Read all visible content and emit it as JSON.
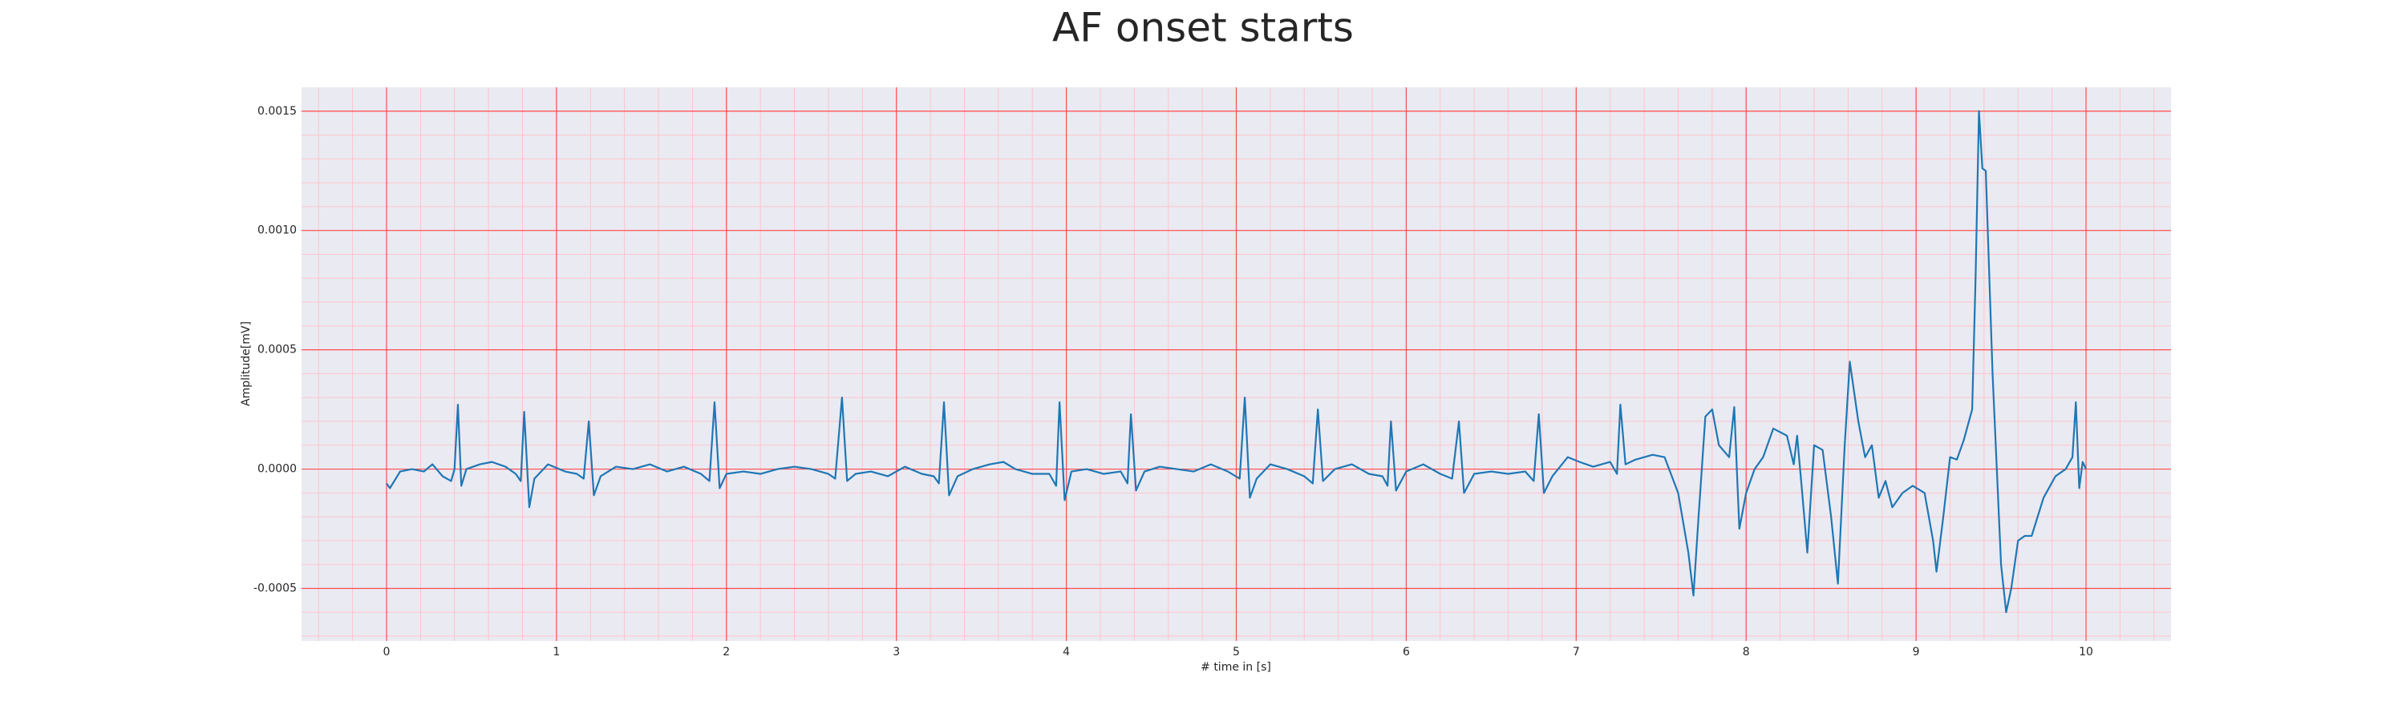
{
  "chart_data": {
    "type": "line",
    "title": "AF onset starts",
    "xlabel": "# time in [s]",
    "ylabel": "Amplitude[mV]",
    "x": [
      0,
      0.02,
      0.08,
      0.15,
      0.22,
      0.27,
      0.33,
      0.38,
      0.4,
      0.42,
      0.44,
      0.47,
      0.55,
      0.62,
      0.7,
      0.76,
      0.79,
      0.81,
      0.84,
      0.87,
      0.95,
      1.05,
      1.12,
      1.16,
      1.19,
      1.22,
      1.26,
      1.35,
      1.45,
      1.55,
      1.65,
      1.75,
      1.85,
      1.9,
      1.93,
      1.96,
      2.0,
      2.1,
      2.2,
      2.3,
      2.4,
      2.5,
      2.6,
      2.64,
      2.68,
      2.71,
      2.76,
      2.85,
      2.95,
      3.05,
      3.15,
      3.22,
      3.25,
      3.28,
      3.31,
      3.36,
      3.45,
      3.55,
      3.63,
      3.7,
      3.8,
      3.9,
      3.94,
      3.96,
      3.99,
      4.03,
      4.12,
      4.22,
      4.32,
      4.36,
      4.38,
      4.41,
      4.46,
      4.55,
      4.65,
      4.75,
      4.85,
      4.95,
      5.02,
      5.05,
      5.08,
      5.12,
      5.2,
      5.3,
      5.4,
      5.45,
      5.48,
      5.51,
      5.58,
      5.68,
      5.78,
      5.86,
      5.89,
      5.91,
      5.94,
      6.0,
      6.1,
      6.2,
      6.27,
      6.31,
      6.34,
      6.4,
      6.5,
      6.6,
      6.7,
      6.75,
      6.78,
      6.81,
      6.86,
      6.95,
      7.02,
      7.1,
      7.2,
      7.24,
      7.26,
      7.29,
      7.35,
      7.45,
      7.52,
      7.6,
      7.66,
      7.69,
      7.72,
      7.76,
      7.8,
      7.84,
      7.9,
      7.93,
      7.96,
      8.0,
      8.05,
      8.1,
      8.16,
      8.24,
      8.28,
      8.3,
      8.33,
      8.36,
      8.4,
      8.45,
      8.5,
      8.54,
      8.58,
      8.61,
      8.66,
      8.7,
      8.74,
      8.78,
      8.82,
      8.86,
      8.92,
      8.98,
      9.05,
      9.1,
      9.12,
      9.16,
      9.2,
      9.24,
      9.28,
      9.33,
      9.35,
      9.37,
      9.39,
      9.41,
      9.45,
      9.5,
      9.53,
      9.56,
      9.6,
      9.64,
      9.68,
      9.75,
      9.82,
      9.88,
      9.92,
      9.94,
      9.96,
      9.98,
      10.0
    ],
    "values": [
      -6e-05,
      -8e-05,
      -1e-05,
      0.0,
      -1e-05,
      2e-05,
      -3e-05,
      -5e-05,
      0.0,
      0.00027,
      -7e-05,
      0.0,
      2e-05,
      3e-05,
      1e-05,
      -2e-05,
      -5e-05,
      0.00024,
      -0.00016,
      -4e-05,
      2e-05,
      -1e-05,
      -2e-05,
      -4e-05,
      0.0002,
      -0.00011,
      -3e-05,
      1e-05,
      0.0,
      2e-05,
      -1e-05,
      1e-05,
      -2e-05,
      -5e-05,
      0.00028,
      -8e-05,
      -2e-05,
      -1e-05,
      -2e-05,
      0.0,
      1e-05,
      0.0,
      -2e-05,
      -4e-05,
      0.0003,
      -5e-05,
      -2e-05,
      -1e-05,
      -3e-05,
      1e-05,
      -2e-05,
      -3e-05,
      -6e-05,
      0.00028,
      -0.00011,
      -3e-05,
      0.0,
      2e-05,
      3e-05,
      0.0,
      -2e-05,
      -2e-05,
      -7e-05,
      0.00028,
      -0.00013,
      -1e-05,
      0.0,
      -2e-05,
      -1e-05,
      -6e-05,
      0.00023,
      -9e-05,
      -1e-05,
      1e-05,
      0.0,
      -1e-05,
      2e-05,
      -1e-05,
      -4e-05,
      0.0003,
      -0.00012,
      -4e-05,
      2e-05,
      0.0,
      -3e-05,
      -6e-05,
      0.00025,
      -5e-05,
      0.0,
      2e-05,
      -2e-05,
      -3e-05,
      -7e-05,
      0.0002,
      -9e-05,
      -1e-05,
      2e-05,
      -2e-05,
      -4e-05,
      0.0002,
      -0.0001,
      -2e-05,
      -1e-05,
      -2e-05,
      -1e-05,
      -5e-05,
      0.00023,
      -0.0001,
      -3e-05,
      5e-05,
      3e-05,
      1e-05,
      3e-05,
      -2e-05,
      0.00027,
      2e-05,
      4e-05,
      6e-05,
      5e-05,
      -0.0001,
      -0.00035,
      -0.00053,
      -0.0002,
      0.00022,
      0.00025,
      0.0001,
      5e-05,
      0.00026,
      -0.00025,
      -0.0001,
      0.0,
      5e-05,
      0.00017,
      0.00014,
      2e-05,
      0.00014,
      -0.0001,
      -0.00035,
      0.0001,
      8e-05,
      -0.0002,
      -0.00048,
      0.0001,
      0.00045,
      0.0002,
      5e-05,
      0.0001,
      -0.00012,
      -5e-05,
      -0.00016,
      -0.0001,
      -7e-05,
      -0.0001,
      -0.0003,
      -0.00043,
      -0.0002,
      5e-05,
      4e-05,
      0.00012,
      0.00025,
      0.0008,
      0.0015,
      0.00126,
      0.00125,
      0.0004,
      -0.0004,
      -0.0006,
      -0.0005,
      -0.0003,
      -0.00028,
      -0.00028,
      -0.00012,
      -3e-05,
      0.0,
      5e-05,
      0.00028,
      -8e-05,
      3e-05,
      0.0
    ],
    "color": "#1f77b4",
    "xlim": [
      -0.5,
      10.5
    ],
    "xticks": [
      0,
      1,
      2,
      3,
      4,
      5,
      6,
      7,
      8,
      9,
      10
    ],
    "ylim": [
      -0.00072,
      0.0016
    ],
    "yticks": [
      {
        "value": -0.0005,
        "label": "-0.0005"
      },
      {
        "value": 0,
        "label": "0.0000"
      },
      {
        "value": 0.0005,
        "label": "0.0005"
      },
      {
        "value": 0.001,
        "label": "0.0010"
      },
      {
        "value": 0.0015,
        "label": "0.0015"
      }
    ],
    "grid": true,
    "minor_grid": true,
    "grid_color": "#ff4d4d",
    "minor_grid_color": "#ffc4cc",
    "background": "#eaeaf2"
  }
}
